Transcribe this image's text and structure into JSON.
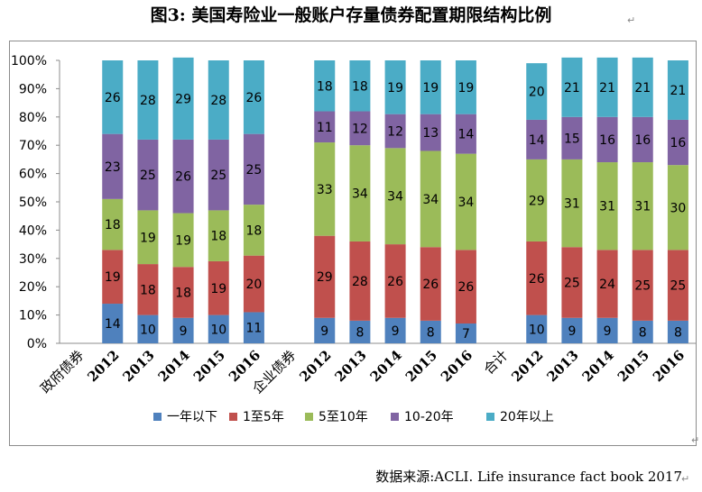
{
  "page": {
    "title": "图3:  美国寿险业一般账户存量债券配置期限结构比例",
    "source": "数据来源:ACLI. Life insurance fact book 2017"
  },
  "chart_data": {
    "type": "bar",
    "stacked": true,
    "percent": true,
    "groups": [
      {
        "label": "政府债券",
        "years": [
          "2012",
          "2013",
          "2014",
          "2015",
          "2016"
        ]
      },
      {
        "label": "企业债券",
        "years": [
          "2012",
          "2013",
          "2014",
          "2015",
          "2016"
        ]
      },
      {
        "label": "合计",
        "years": [
          "2012",
          "2013",
          "2014",
          "2015",
          "2016"
        ]
      }
    ],
    "categories": [
      "政府债券 2012",
      "政府债券 2013",
      "政府债券 2014",
      "政府债券 2015",
      "政府债券 2016",
      "企业债券 2012",
      "企业债券 2013",
      "企业债券 2014",
      "企业债券 2015",
      "企业债券 2016",
      "合计 2012",
      "合计 2013",
      "合计 2014",
      "合计 2015",
      "合计 2016"
    ],
    "series": [
      {
        "name": "一年以下",
        "color": "#4f81bd",
        "values": [
          14,
          10,
          9,
          10,
          11,
          9,
          8,
          9,
          8,
          7,
          10,
          9,
          9,
          8,
          8
        ]
      },
      {
        "name": "1至5年",
        "color": "#c0504d",
        "values": [
          19,
          18,
          18,
          19,
          20,
          29,
          28,
          26,
          26,
          26,
          26,
          25,
          24,
          25,
          25
        ]
      },
      {
        "name": "5至10年",
        "color": "#9bbb59",
        "values": [
          18,
          19,
          19,
          18,
          18,
          33,
          34,
          34,
          34,
          34,
          29,
          31,
          31,
          31,
          30
        ]
      },
      {
        "name": "10-20年",
        "color": "#8064a2",
        "values": [
          23,
          25,
          26,
          25,
          25,
          11,
          12,
          12,
          13,
          14,
          14,
          15,
          16,
          16,
          16
        ]
      },
      {
        "name": "20年以上",
        "color": "#4bacc6",
        "values": [
          26,
          28,
          29,
          28,
          26,
          18,
          18,
          19,
          19,
          19,
          20,
          21,
          21,
          21,
          21
        ]
      }
    ],
    "yaxis": {
      "ticks": [
        "0%",
        "10%",
        "20%",
        "30%",
        "40%",
        "50%",
        "60%",
        "70%",
        "80%",
        "90%",
        "100%"
      ],
      "ylim": [
        0,
        100
      ]
    },
    "grid": false,
    "legend": {
      "position": "bottom"
    }
  }
}
